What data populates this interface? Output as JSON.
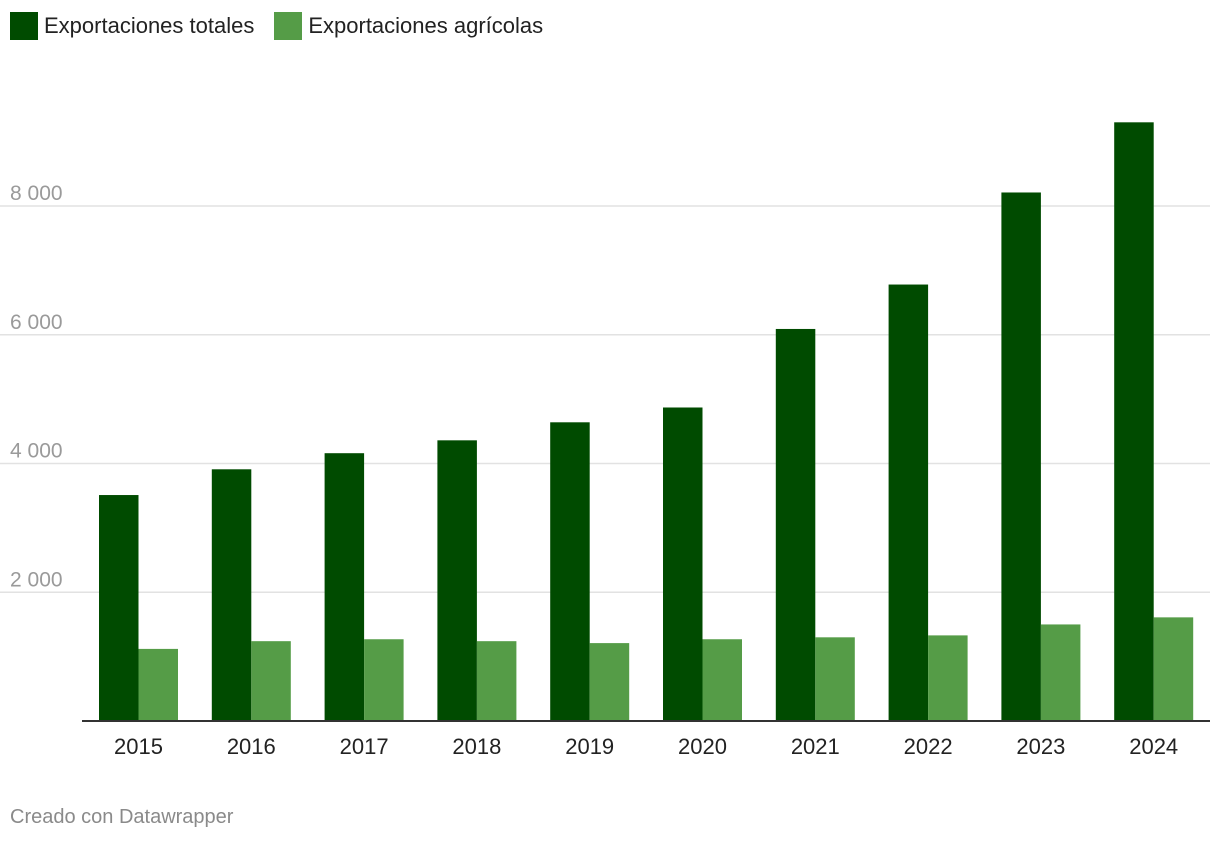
{
  "legend": {
    "items": [
      {
        "label": "Exportaciones totales",
        "color": "#004b00"
      },
      {
        "label": "Exportaciones agrícolas",
        "color": "#559c47"
      }
    ]
  },
  "footer": {
    "credit": "Creado con Datawrapper"
  },
  "chart_data": {
    "type": "bar",
    "categories": [
      "2015",
      "2016",
      "2017",
      "2018",
      "2019",
      "2020",
      "2021",
      "2022",
      "2023",
      "2024"
    ],
    "series": [
      {
        "name": "Exportaciones totales",
        "color": "#004b00",
        "values": [
          3510,
          3910,
          4160,
          4360,
          4640,
          4870,
          6090,
          6780,
          8210,
          9300
        ]
      },
      {
        "name": "Exportaciones agrícolas",
        "color": "#559c47",
        "values": [
          1120,
          1240,
          1270,
          1240,
          1210,
          1270,
          1300,
          1330,
          1500,
          1610
        ]
      }
    ],
    "yticks": [
      2000,
      4000,
      6000,
      8000
    ],
    "ytick_labels": [
      "2 000",
      "4 000",
      "6 000",
      "8 000"
    ],
    "ylim": [
      0,
      9300
    ],
    "grid": true,
    "legend_position": "top-left",
    "title": "",
    "xlabel": "",
    "ylabel": ""
  }
}
